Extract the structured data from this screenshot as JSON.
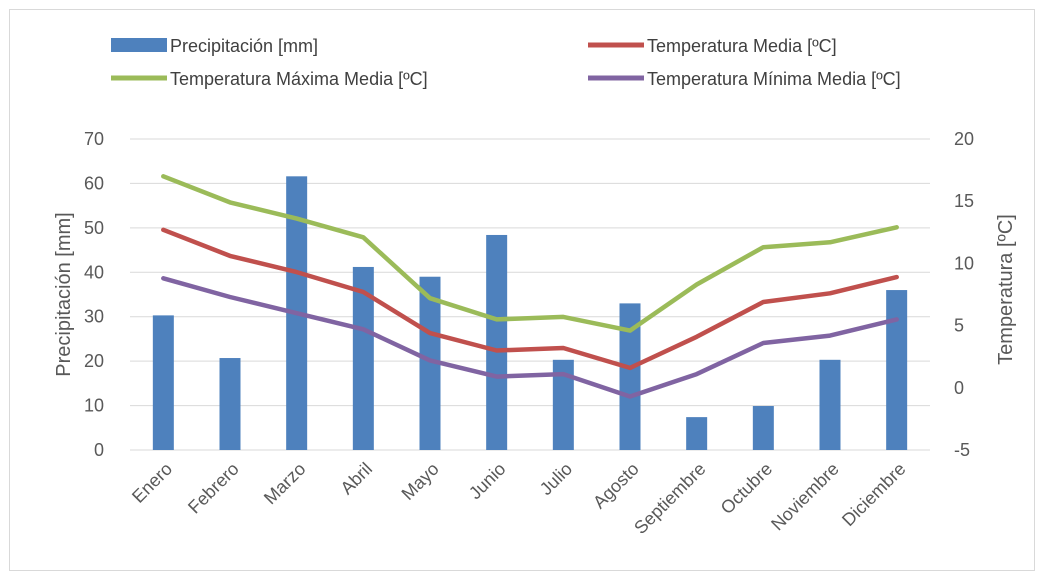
{
  "chart_data": {
    "type": "bar+line",
    "categories": [
      "Enero",
      "Febrero",
      "Marzo",
      "Abril",
      "Mayo",
      "Junio",
      "Julio",
      "Agosto",
      "Septiembre",
      "Octubre",
      "Noviembre",
      "Diciembre"
    ],
    "series": [
      {
        "name": "Precipitación [mm]",
        "type": "bar",
        "axis": "left",
        "color": "#4e81bd",
        "values": [
          30.3,
          20.7,
          61.6,
          41.2,
          39.0,
          48.4,
          20.3,
          33.0,
          7.4,
          9.9,
          20.3,
          36.0
        ]
      },
      {
        "name": "Temperatura Media [ºC]",
        "type": "line",
        "axis": "right",
        "color": "#c0504d",
        "values": [
          12.7,
          10.6,
          9.3,
          7.7,
          4.4,
          3.0,
          3.2,
          1.6,
          4.1,
          6.9,
          7.6,
          8.9
        ]
      },
      {
        "name": "Temperatura Máxima Media [ºC]",
        "type": "line",
        "axis": "right",
        "color": "#9bbb59",
        "values": [
          17.0,
          14.9,
          13.6,
          12.1,
          7.2,
          5.5,
          5.7,
          4.6,
          8.3,
          11.3,
          11.7,
          12.9
        ]
      },
      {
        "name": "Temperatura Mínima Media [ºC]",
        "type": "line",
        "axis": "right",
        "color": "#8064a2",
        "values": [
          8.8,
          7.3,
          6.0,
          4.7,
          2.2,
          0.9,
          1.1,
          -0.7,
          1.1,
          3.6,
          4.2,
          5.5
        ]
      }
    ],
    "y_left": {
      "label": "Precipitación [mm]",
      "min": 0,
      "max": 70,
      "step": 10
    },
    "y_right": {
      "label": "Temperatura [ºC]",
      "min": -5,
      "max": 20,
      "step": 5
    },
    "grid": true,
    "legend_position": "top"
  }
}
